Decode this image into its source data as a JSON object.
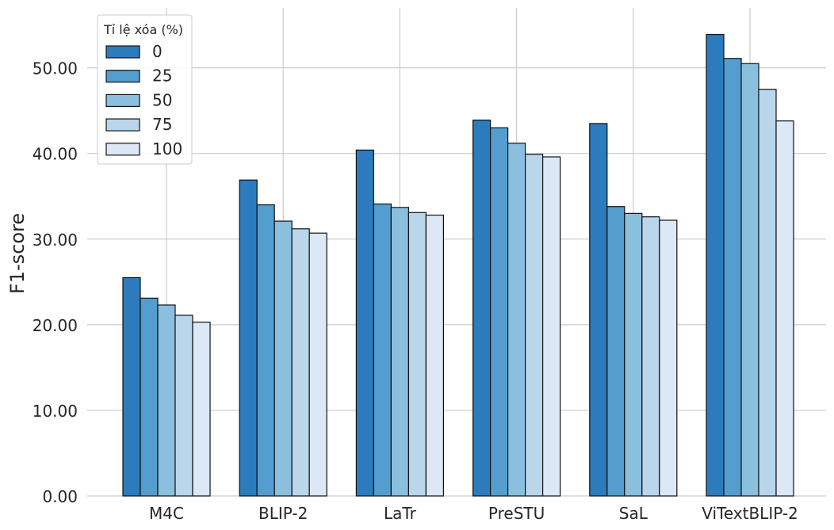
{
  "chart_data": {
    "type": "bar",
    "title": "",
    "xlabel": "",
    "ylabel": "F1-score",
    "ylim": [
      0,
      57
    ],
    "yticks": [
      0,
      10,
      20,
      30,
      40,
      50
    ],
    "ytick_labels": [
      "0.00",
      "10.00",
      "20.00",
      "30.00",
      "40.00",
      "50.00"
    ],
    "grid": true,
    "legend_title": "Tỉ lệ xóa (%)",
    "legend_position": "top-left",
    "categories": [
      "M4C",
      "BLIP-2",
      "LaTr",
      "PreSTU",
      "SaL",
      "ViTextBLIP-2"
    ],
    "series": [
      {
        "name": "0",
        "color": "#2c7bbc",
        "values": [
          25.5,
          36.9,
          40.4,
          43.9,
          43.5,
          53.9
        ]
      },
      {
        "name": "25",
        "color": "#539ecf",
        "values": [
          23.1,
          34.0,
          34.1,
          43.0,
          33.8,
          51.1
        ]
      },
      {
        "name": "50",
        "color": "#8bbfde",
        "values": [
          22.3,
          32.1,
          33.7,
          41.2,
          33.0,
          50.5
        ]
      },
      {
        "name": "75",
        "color": "#bad6ea",
        "values": [
          21.1,
          31.2,
          33.1,
          39.9,
          32.6,
          47.5
        ]
      },
      {
        "name": "100",
        "color": "#dce8f5",
        "values": [
          20.3,
          30.7,
          32.8,
          39.6,
          32.2,
          43.8
        ]
      }
    ]
  }
}
